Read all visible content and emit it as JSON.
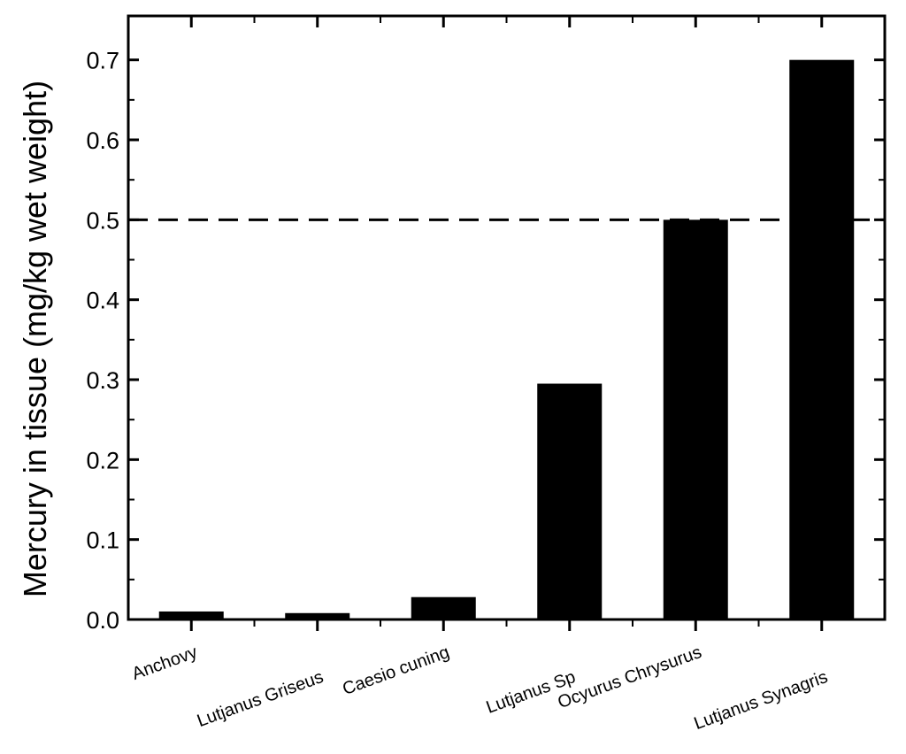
{
  "chart_data": {
    "type": "bar",
    "title": "",
    "xlabel": "",
    "ylabel": "Mercury in tissue (mg/kg wet weight)",
    "categories": [
      "Anchovy",
      "Lutjanus Griseus",
      "Caesio cuning",
      "Lutjanus Sp",
      "Ocyurus Chrysurus",
      "Lutjanus Synagris"
    ],
    "values": [
      0.01,
      0.008,
      0.028,
      0.295,
      0.5,
      0.7
    ],
    "ylim": [
      0,
      0.755
    ],
    "yticks": [
      "0.0",
      "0.1",
      "0.2",
      "0.3",
      "0.4",
      "0.5",
      "0.6",
      "0.7"
    ],
    "reference_line": {
      "y": 0.5,
      "style": "dashed"
    },
    "bar_color": "#000000",
    "grid": false,
    "legend": "none"
  }
}
